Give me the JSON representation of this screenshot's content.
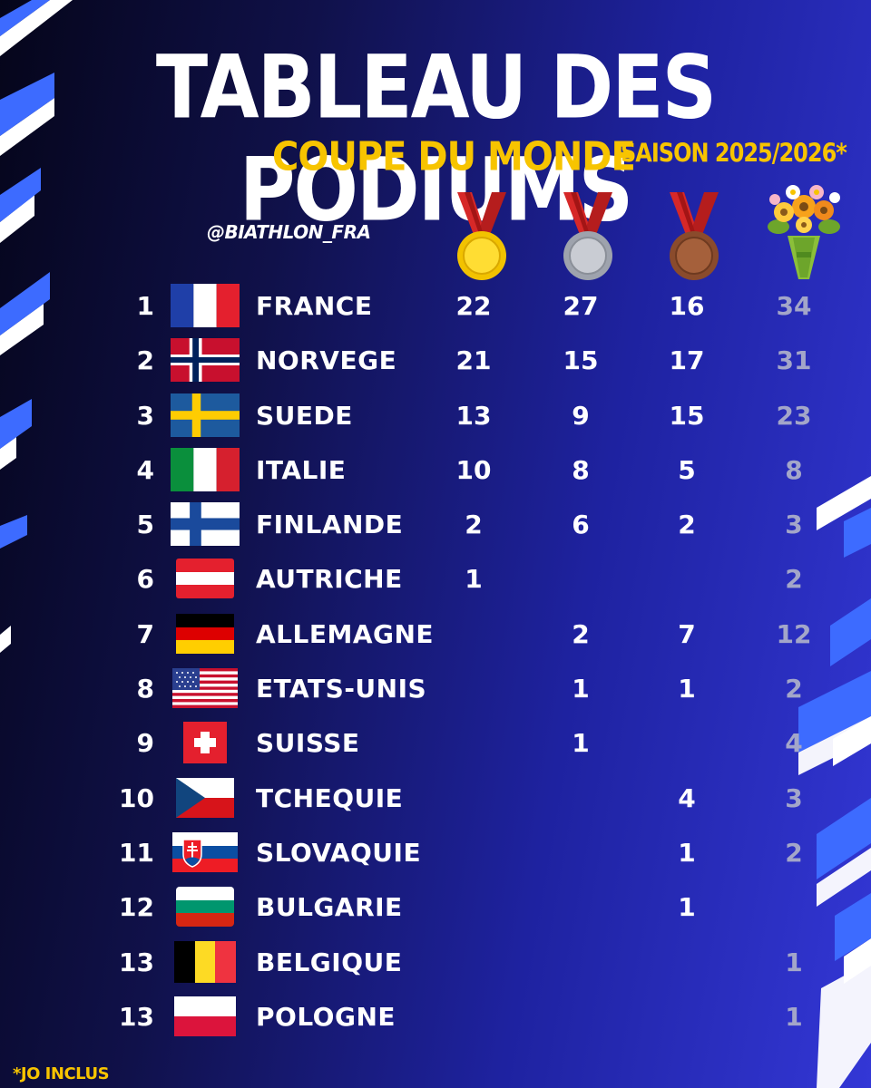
{
  "header": {
    "title": "TABLEAU DES PODIUMS",
    "subtitle": "COUPE DU MONDE",
    "season": "SAISON 2025/2026*",
    "handle": "@BIATHLON_FRA"
  },
  "columns": {
    "gold_icon": "gold-medal-icon",
    "silver_icon": "silver-medal-icon",
    "bronze_icon": "bronze-medal-icon",
    "total_icon": "flower-bouquet-icon"
  },
  "colors": {
    "accent_yellow": "#f7c400",
    "total_grey": "#a3a6c9",
    "background_dark": "#05051a",
    "background_blue": "#3337d6"
  },
  "rows": [
    {
      "rank": "1",
      "flag": "france-flag",
      "country": "FRANCE",
      "gold": "22",
      "silver": "27",
      "bronze": "16",
      "total": "34"
    },
    {
      "rank": "2",
      "flag": "norway-flag",
      "country": "NORVEGE",
      "gold": "21",
      "silver": "15",
      "bronze": "17",
      "total": "31"
    },
    {
      "rank": "3",
      "flag": "sweden-flag",
      "country": "SUEDE",
      "gold": "13",
      "silver": "9",
      "bronze": "15",
      "total": "23"
    },
    {
      "rank": "4",
      "flag": "italy-flag",
      "country": "ITALIE",
      "gold": "10",
      "silver": "8",
      "bronze": "5",
      "total": "8"
    },
    {
      "rank": "5",
      "flag": "finland-flag",
      "country": "FINLANDE",
      "gold": "2",
      "silver": "6",
      "bronze": "2",
      "total": "3"
    },
    {
      "rank": "6",
      "flag": "austria-flag",
      "country": "AUTRICHE",
      "gold": "1",
      "silver": "",
      "bronze": "",
      "total": "2"
    },
    {
      "rank": "7",
      "flag": "germany-flag",
      "country": "ALLEMAGNE",
      "gold": "",
      "silver": "2",
      "bronze": "7",
      "total": "12"
    },
    {
      "rank": "8",
      "flag": "usa-flag",
      "country": "ETATS-UNIS",
      "gold": "",
      "silver": "1",
      "bronze": "1",
      "total": "2"
    },
    {
      "rank": "9",
      "flag": "switzerland-flag",
      "country": "SUISSE",
      "gold": "",
      "silver": "1",
      "bronze": "",
      "total": "4"
    },
    {
      "rank": "10",
      "flag": "czechia-flag",
      "country": "TCHEQUIE",
      "gold": "",
      "silver": "",
      "bronze": "4",
      "total": "3"
    },
    {
      "rank": "11",
      "flag": "slovakia-flag",
      "country": "SLOVAQUIE",
      "gold": "",
      "silver": "",
      "bronze": "1",
      "total": "2"
    },
    {
      "rank": "12",
      "flag": "bulgaria-flag",
      "country": "BULGARIE",
      "gold": "",
      "silver": "",
      "bronze": "1",
      "total": ""
    },
    {
      "rank": "13",
      "flag": "belgium-flag",
      "country": "BELGIQUE",
      "gold": "",
      "silver": "",
      "bronze": "",
      "total": "1"
    },
    {
      "rank": "13",
      "flag": "poland-flag",
      "country": "POLOGNE",
      "gold": "",
      "silver": "",
      "bronze": "",
      "total": "1"
    }
  ],
  "footnote": "*JO INCLUS"
}
